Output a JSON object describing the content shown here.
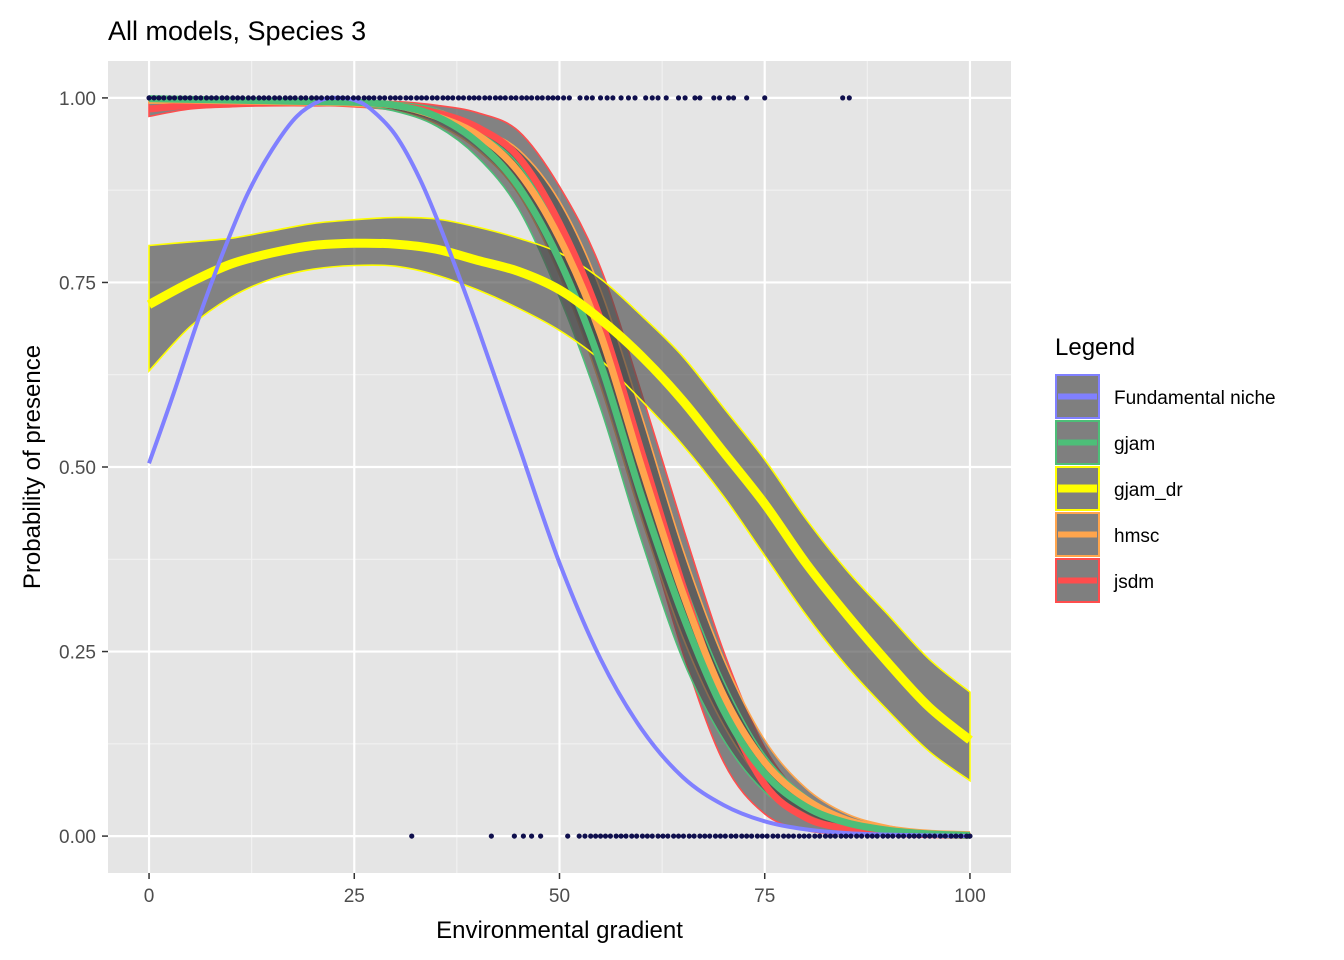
{
  "chart_data": {
    "type": "line",
    "title": "All models, Species 3",
    "xlabel": "Environmental gradient",
    "ylabel": "Probability of presence",
    "xlim": [
      -5,
      105
    ],
    "ylim": [
      -0.05,
      1.05
    ],
    "x_ticks": [
      0,
      25,
      50,
      75,
      100
    ],
    "y_ticks": [
      0.0,
      0.25,
      0.5,
      0.75,
      1.0
    ],
    "x_tick_labels": [
      "0",
      "25",
      "50",
      "75",
      "100"
    ],
    "y_tick_labels": [
      "0.00",
      "0.25",
      "0.50",
      "0.75",
      "1.00"
    ],
    "grid": true,
    "legend": {
      "title": "Legend",
      "position": "right",
      "entries": [
        "Fundamental niche",
        "gjam",
        "gjam_dr",
        "hmsc",
        "jsdm"
      ]
    },
    "series": [
      {
        "name": "jsdm",
        "color": "#ff4d4d",
        "x": [
          0,
          5,
          10,
          15,
          20,
          25,
          30,
          35,
          40,
          45,
          50,
          55,
          60,
          65,
          70,
          75,
          80,
          85,
          90,
          95,
          100
        ],
        "y": [
          0.985,
          0.99,
          0.992,
          0.993,
          0.993,
          0.993,
          0.99,
          0.98,
          0.96,
          0.92,
          0.83,
          0.7,
          0.52,
          0.34,
          0.18,
          0.07,
          0.025,
          0.01,
          0.004,
          0.002,
          0.001
        ],
        "lower": [
          0.975,
          0.985,
          0.988,
          0.99,
          0.99,
          0.988,
          0.983,
          0.97,
          0.94,
          0.89,
          0.78,
          0.63,
          0.44,
          0.25,
          0.1,
          0.03,
          0.008,
          0.002,
          0.0005,
          0.0002,
          0.0001
        ],
        "upper": [
          0.994,
          0.995,
          0.996,
          0.996,
          0.996,
          0.996,
          0.995,
          0.99,
          0.98,
          0.955,
          0.88,
          0.77,
          0.6,
          0.42,
          0.25,
          0.12,
          0.05,
          0.02,
          0.008,
          0.004,
          0.002
        ]
      },
      {
        "name": "hmsc",
        "color": "#ffa54d",
        "x": [
          0,
          5,
          10,
          15,
          20,
          25,
          30,
          35,
          40,
          45,
          50,
          55,
          60,
          65,
          70,
          75,
          80,
          85,
          90,
          95,
          100
        ],
        "y": [
          0.998,
          0.997,
          0.996,
          0.995,
          0.994,
          0.993,
          0.99,
          0.975,
          0.95,
          0.9,
          0.81,
          0.68,
          0.5,
          0.33,
          0.19,
          0.1,
          0.05,
          0.022,
          0.01,
          0.004,
          0.002
        ],
        "lower": [
          0.993,
          0.993,
          0.993,
          0.992,
          0.991,
          0.989,
          0.983,
          0.965,
          0.93,
          0.87,
          0.76,
          0.61,
          0.43,
          0.27,
          0.15,
          0.07,
          0.03,
          0.012,
          0.005,
          0.002,
          0.001
        ],
        "upper": [
          1.0,
          1.0,
          0.999,
          0.998,
          0.997,
          0.996,
          0.994,
          0.985,
          0.96,
          0.93,
          0.86,
          0.74,
          0.57,
          0.39,
          0.24,
          0.13,
          0.065,
          0.03,
          0.014,
          0.006,
          0.003
        ]
      },
      {
        "name": "gjam",
        "color": "#4dbe78",
        "x": [
          0,
          5,
          10,
          15,
          20,
          25,
          30,
          35,
          40,
          45,
          50,
          55,
          60,
          65,
          70,
          75,
          80,
          85,
          90,
          95,
          100
        ],
        "y": [
          0.999,
          0.998,
          0.997,
          0.996,
          0.995,
          0.994,
          0.99,
          0.975,
          0.94,
          0.88,
          0.78,
          0.64,
          0.46,
          0.3,
          0.17,
          0.085,
          0.04,
          0.018,
          0.008,
          0.003,
          0.001
        ],
        "lower": [
          0.997,
          0.996,
          0.995,
          0.994,
          0.993,
          0.99,
          0.982,
          0.962,
          0.92,
          0.85,
          0.73,
          0.58,
          0.4,
          0.24,
          0.13,
          0.06,
          0.025,
          0.01,
          0.004,
          0.002,
          0.001
        ],
        "upper": [
          1.0,
          0.999,
          0.999,
          0.998,
          0.997,
          0.996,
          0.994,
          0.985,
          0.955,
          0.91,
          0.82,
          0.7,
          0.52,
          0.35,
          0.21,
          0.11,
          0.055,
          0.025,
          0.011,
          0.005,
          0.002
        ]
      },
      {
        "name": "gjam_dr",
        "color": "#ffff00",
        "x": [
          0,
          5,
          10,
          15,
          20,
          25,
          30,
          35,
          40,
          45,
          50,
          55,
          60,
          65,
          70,
          75,
          80,
          85,
          90,
          95,
          100
        ],
        "y": [
          0.72,
          0.75,
          0.775,
          0.79,
          0.8,
          0.803,
          0.802,
          0.795,
          0.78,
          0.765,
          0.74,
          0.7,
          0.65,
          0.59,
          0.52,
          0.45,
          0.37,
          0.3,
          0.235,
          0.175,
          0.13
        ],
        "lower": [
          0.63,
          0.69,
          0.73,
          0.755,
          0.768,
          0.773,
          0.772,
          0.76,
          0.74,
          0.715,
          0.685,
          0.645,
          0.59,
          0.53,
          0.46,
          0.38,
          0.3,
          0.23,
          0.17,
          0.115,
          0.075
        ],
        "upper": [
          0.8,
          0.805,
          0.81,
          0.82,
          0.83,
          0.835,
          0.838,
          0.836,
          0.825,
          0.81,
          0.79,
          0.755,
          0.705,
          0.65,
          0.58,
          0.51,
          0.43,
          0.36,
          0.3,
          0.24,
          0.195
        ]
      },
      {
        "name": "Fundamental niche",
        "color": "#8080ff",
        "x": [
          0,
          3,
          6,
          9,
          12,
          15,
          18,
          21,
          23,
          25,
          27,
          30,
          33,
          36,
          40,
          45,
          50,
          55,
          60,
          65,
          70,
          75,
          80,
          85,
          90,
          95,
          100
        ],
        "y": [
          0.505,
          0.6,
          0.7,
          0.79,
          0.87,
          0.93,
          0.975,
          0.997,
          1.0,
          0.997,
          0.985,
          0.95,
          0.89,
          0.81,
          0.69,
          0.53,
          0.37,
          0.24,
          0.145,
          0.08,
          0.042,
          0.02,
          0.009,
          0.004,
          0.002,
          0.001,
          0.0
        ]
      }
    ],
    "observations": {
      "color": "#0f0f4d",
      "present_x": [
        0,
        0.6,
        1.2,
        1.8,
        2.5,
        3.1,
        3.8,
        4.4,
        5,
        5.7,
        6.3,
        7,
        7.6,
        8.2,
        8.9,
        9.5,
        10.2,
        10.8,
        11.4,
        12.1,
        12.7,
        13.4,
        14,
        14.6,
        15.3,
        15.9,
        16.6,
        17.2,
        17.8,
        18.5,
        19.1,
        19.8,
        20.4,
        21,
        21.7,
        22.3,
        23,
        23.6,
        24.2,
        24.9,
        25.5,
        26.2,
        26.8,
        27.4,
        28.1,
        28.7,
        29.4,
        30,
        30.6,
        31.3,
        31.9,
        32.6,
        33.2,
        33.8,
        34.5,
        35.1,
        35.8,
        36.4,
        37,
        37.7,
        38.3,
        39,
        39.6,
        40.2,
        40.9,
        41.5,
        42.2,
        42.8,
        43.4,
        44.1,
        44.7,
        45.4,
        46,
        46.6,
        47.3,
        47.9,
        48.6,
        49.2,
        49.8,
        50.5,
        51.2,
        52.5,
        53.3,
        54,
        55,
        55.8,
        56.5,
        57.5,
        58.4,
        59.2,
        60.5,
        61.3,
        62,
        63,
        64.5,
        65.3,
        66.5,
        67.1,
        68.8,
        69.5,
        70.6,
        71.2,
        72.8,
        75,
        84.5,
        85.3
      ],
      "present_y": 1,
      "absent_x": [
        32,
        41.7,
        44.5,
        45.6,
        46.6,
        47.7,
        51,
        52.4,
        53.1,
        53.8,
        54.4,
        55,
        55.6,
        56.2,
        56.9,
        57.5,
        58.1,
        58.8,
        59.4,
        60.1,
        60.7,
        61.3,
        62,
        62.6,
        63.2,
        63.9,
        64.5,
        65.1,
        65.8,
        66.4,
        67.1,
        67.7,
        68.3,
        69,
        69.6,
        70.2,
        70.9,
        71.5,
        72.2,
        72.8,
        73.4,
        74.1,
        74.7,
        75.3,
        76,
        76.6,
        77.3,
        77.9,
        78.5,
        79.2,
        79.8,
        80.4,
        81.1,
        81.7,
        82.4,
        83,
        83.6,
        84.3,
        84.9,
        85.5,
        86.2,
        86.8,
        87.5,
        88.1,
        88.7,
        89.4,
        90,
        90.6,
        91.3,
        91.9,
        92.6,
        93.2,
        93.8,
        94.5,
        95.1,
        95.7,
        96.4,
        97,
        97.7,
        98.3,
        98.9,
        99.6,
        100
      ],
      "absent_y": 0
    }
  }
}
